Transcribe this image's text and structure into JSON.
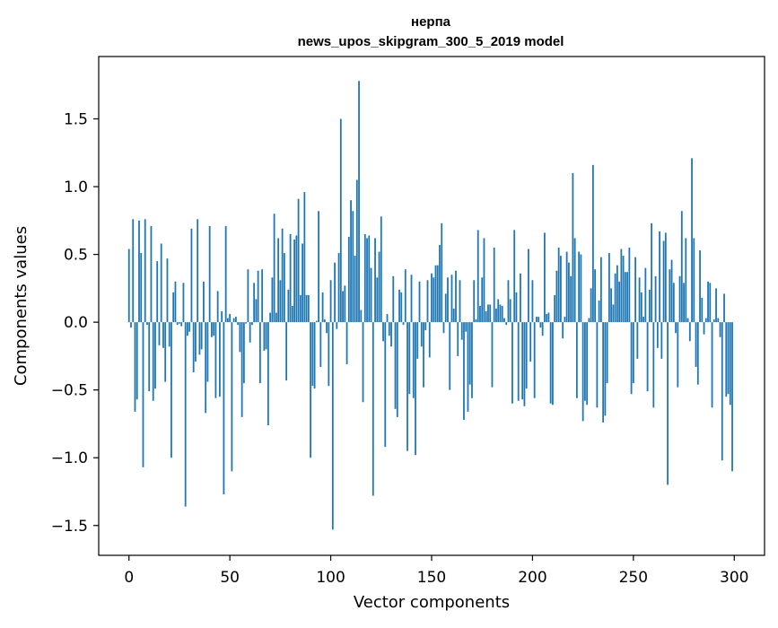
{
  "chart_data": {
    "type": "bar",
    "title_line1": "нерпа",
    "title_line2": "news_upos_skipgram_300_5_2019 model",
    "xlabel": "Vector components",
    "ylabel": "Components values",
    "xlim": [
      -15,
      315
    ],
    "ylim": [
      -1.72,
      1.96
    ],
    "xticks": [
      0,
      50,
      100,
      150,
      200,
      250,
      300
    ],
    "yticks": [
      -1.5,
      -1.0,
      -0.5,
      0.0,
      0.5,
      1.0,
      1.5
    ],
    "ytick_labels": [
      "−1.5",
      "−1.0",
      "−0.5",
      "0.0",
      "0.5",
      "1.0",
      "1.5"
    ],
    "bar_color": "#1f77b4",
    "grid": false,
    "x_start": 0,
    "values": [
      0.54,
      -0.04,
      0.76,
      -0.66,
      -0.57,
      0.75,
      0.51,
      -1.07,
      0.76,
      -0.02,
      -0.51,
      0.71,
      -0.58,
      -0.49,
      0.45,
      -0.17,
      0.58,
      -0.19,
      -0.44,
      0.47,
      -0.18,
      -1.0,
      0.22,
      0.3,
      -0.02,
      -0.01,
      -0.03,
      0.29,
      -1.36,
      -0.1,
      -0.07,
      0.69,
      -0.37,
      -0.29,
      0.76,
      -0.24,
      -0.2,
      0.3,
      -0.67,
      -0.44,
      0.71,
      -0.11,
      -0.1,
      -0.56,
      0.23,
      -0.55,
      0.08,
      -1.27,
      0.71,
      0.03,
      0.06,
      -1.1,
      0.03,
      0.04,
      -0.02,
      -0.22,
      -0.7,
      -0.45,
      -0.01,
      0.39,
      -0.15,
      -0.02,
      0.29,
      0.17,
      0.38,
      -0.45,
      0.39,
      -0.21,
      -0.2,
      -0.76,
      0.07,
      0.33,
      0.8,
      0.07,
      0.62,
      0.31,
      0.69,
      0.51,
      -0.43,
      0.24,
      0.65,
      0.12,
      0.61,
      0.64,
      0.91,
      0.2,
      0.58,
      0.96,
      0.2,
      0.2,
      -1.0,
      -0.47,
      -0.49,
      0.01,
      0.82,
      -0.33,
      0.22,
      0.02,
      -0.08,
      -0.47,
      0.31,
      -1.53,
      0.44,
      -0.05,
      0.51,
      1.5,
      0.23,
      0.27,
      -0.31,
      0.63,
      0.9,
      0.82,
      0.49,
      1.05,
      1.78,
      0.09,
      -0.59,
      0.65,
      0.62,
      0.64,
      0.4,
      -1.28,
      0.62,
      0.33,
      0.52,
      0.78,
      -0.14,
      -0.92,
      0.06,
      -0.1,
      -0.18,
      0.34,
      -0.64,
      -0.7,
      0.24,
      0.22,
      -0.02,
      0.39,
      -0.95,
      -0.53,
      0.35,
      -0.56,
      -0.98,
      -0.27,
      0.3,
      -0.18,
      -0.48,
      -0.06,
      0.31,
      -0.26,
      0.36,
      0.33,
      0.42,
      0.42,
      0.57,
      0.73,
      -0.08,
      0.21,
      0.33,
      -0.5,
      0.35,
      0.1,
      0.38,
      -0.25,
      0.31,
      -0.13,
      -0.72,
      -0.07,
      -0.66,
      -0.46,
      -0.56,
      0.31,
      0.02,
      0.68,
      0.12,
      0.33,
      0.62,
      0.08,
      0.13,
      0.13,
      -0.48,
      0.55,
      0.1,
      0.17,
      0.13,
      0.12,
      0.03,
      -0.02,
      0.31,
      0.17,
      -0.6,
      0.68,
      0.22,
      -0.58,
      0.36,
      -0.57,
      -0.62,
      -0.49,
      0.54,
      -0.29,
      0.31,
      -0.56,
      0.04,
      0.04,
      -0.04,
      -0.1,
      0.66,
      0.06,
      0.07,
      -0.6,
      -0.61,
      0.2,
      0.38,
      0.55,
      0.49,
      -0.12,
      0.04,
      0.52,
      0.44,
      0.34,
      1.1,
      0.62,
      -0.56,
      0.52,
      0.5,
      -0.73,
      -0.58,
      -0.61,
      0.03,
      0.25,
      1.16,
      0.39,
      -0.63,
      0.16,
      0.48,
      -0.74,
      -0.69,
      -0.45,
      0.51,
      0.25,
      0.13,
      0.36,
      0.42,
      0.3,
      0.54,
      0.49,
      0.37,
      0.37,
      0.55,
      -0.53,
      -0.45,
      0.48,
      -0.27,
      0.33,
      0.22,
      0.04,
      0.4,
      -0.51,
      0.24,
      0.73,
      -0.63,
      0.34,
      -0.19,
      0.67,
      -0.27,
      0.6,
      0.66,
      -1.2,
      0.39,
      0.46,
      0.29,
      -0.08,
      -0.48,
      0.34,
      0.82,
      0.29,
      0.62,
      0.03,
      -0.14,
      1.21,
      0.62,
      -0.33,
      -0.46,
      0.53,
      0.18,
      -0.09,
      0.03,
      0.3,
      0.29,
      -0.63,
      0.02,
      0.25,
      0.03,
      -0.11,
      -1.02,
      0.21,
      -0.55,
      -0.53,
      -0.61,
      -1.1
    ]
  }
}
